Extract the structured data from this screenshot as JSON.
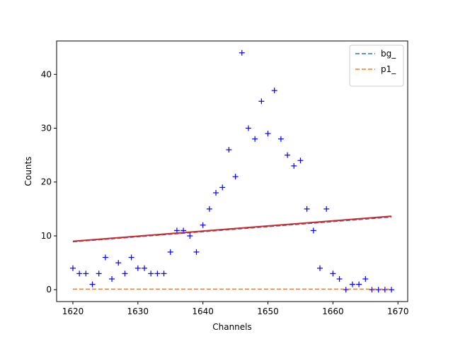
{
  "chart_data": {
    "type": "scatter",
    "xlabel": "Channels",
    "ylabel": "Counts",
    "xlim": [
      1617.5,
      1671.5
    ],
    "ylim": [
      -2.2,
      46.2
    ],
    "xticks": [
      1620,
      1630,
      1640,
      1650,
      1660,
      1670
    ],
    "yticks": [
      0,
      10,
      20,
      30,
      40
    ],
    "grid": false,
    "legend_placement": "top-right",
    "series": [
      {
        "kind": "markers",
        "marker": "plus",
        "color": "#0000ff",
        "x": [
          1620,
          1621,
          1622,
          1623,
          1624,
          1625,
          1626,
          1627,
          1628,
          1629,
          1630,
          1631,
          1632,
          1633,
          1634,
          1635,
          1636,
          1637,
          1638,
          1639,
          1640,
          1641,
          1642,
          1643,
          1644,
          1645,
          1646,
          1647,
          1648,
          1649,
          1650,
          1651,
          1652,
          1653,
          1654,
          1655,
          1656,
          1657,
          1658,
          1659,
          1660,
          1661,
          1662,
          1663,
          1664,
          1665,
          1666,
          1667,
          1668,
          1669
        ],
        "y": [
          4,
          3,
          3,
          1,
          3,
          6,
          2,
          5,
          3,
          6,
          4,
          4,
          3,
          3,
          3,
          7,
          11,
          11,
          10,
          7,
          12,
          15,
          18,
          19,
          26,
          21,
          44,
          30,
          28,
          35,
          29,
          37,
          28,
          25,
          23,
          24,
          15,
          11,
          4,
          15,
          3,
          2,
          0,
          1,
          1,
          2,
          0,
          0,
          0,
          0
        ]
      },
      {
        "name": "bg_",
        "kind": "line",
        "style": "dashed",
        "color": "#1f77b4",
        "x": [
          1620,
          1669
        ],
        "y": [
          8.9,
          13.5
        ]
      },
      {
        "name": "p1_",
        "kind": "line",
        "style": "dashed",
        "color": "#ff7f0e",
        "x": [
          1620,
          1669
        ],
        "y": [
          0.1,
          0.1
        ]
      },
      {
        "kind": "line",
        "style": "solid",
        "color": "#d62728",
        "x": [
          1620,
          1669
        ],
        "y": [
          9.0,
          13.65
        ]
      }
    ]
  }
}
